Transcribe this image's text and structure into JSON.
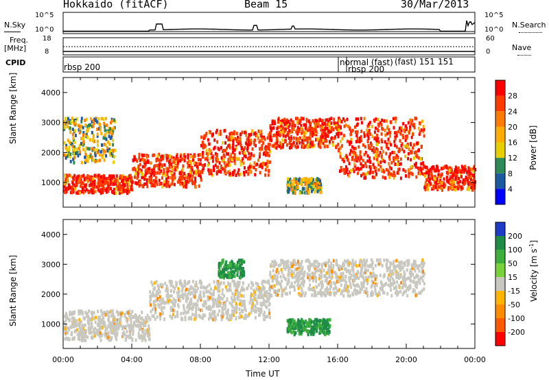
{
  "header": {
    "station": "Hokkaido (fitACF)",
    "beam": "Beam 15",
    "date": "30/Mar/2013"
  },
  "top_panels": {
    "nsky_label": "N.Sky",
    "nsky_ticks": [
      "10^5",
      "10^0"
    ],
    "nsearch_label": "N.Search",
    "nsearch_ticks": [
      "10^5",
      "10^0"
    ],
    "freq_label_1": "Freq.",
    "freq_label_2": "[MHz]",
    "freq_ticks": [
      "18",
      "8"
    ],
    "nave_label": "Nave",
    "nave_ticks": [
      "60",
      "0"
    ],
    "cpid_label": "CPID",
    "cpid_entries": [
      "rbsp 200",
      "normal (fast)",
      "rbsp 200",
      "(fast) 151",
      "151"
    ]
  },
  "chart_data": [
    {
      "type": "heatmap",
      "title": "",
      "ylabel": "Slant Range [km]",
      "xlim": [
        0,
        24
      ],
      "ylim": [
        180,
        4500
      ],
      "yticks": [
        "1000",
        "2000",
        "3000",
        "4000"
      ],
      "colorbar_label": "Power [dB]",
      "colorbar_ticks": [
        "28",
        "24",
        "20",
        "16",
        "12",
        "8",
        "4"
      ],
      "colorbar_colors": [
        "#ff0000",
        "#ff3b00",
        "#ff7a00",
        "#ffad00",
        "#e8d000",
        "#2e8b57",
        "#1e5aa0",
        "#0000ff"
      ],
      "regions": [
        {
          "t": [
            0,
            4
          ],
          "range": [
            700,
            1300
          ],
          "level": "high"
        },
        {
          "t": [
            4,
            8
          ],
          "range": [
            900,
            2000
          ],
          "level": "high"
        },
        {
          "t": [
            8,
            12
          ],
          "range": [
            1300,
            2800
          ],
          "level": "high"
        },
        {
          "t": [
            12,
            16
          ],
          "range": [
            2200,
            3200
          ],
          "level": "high"
        },
        {
          "t": [
            16,
            21
          ],
          "range": [
            1200,
            3200
          ],
          "level": "high"
        },
        {
          "t": [
            21,
            24
          ],
          "range": [
            800,
            1600
          ],
          "level": "high"
        },
        {
          "t": [
            0,
            3
          ],
          "range": [
            1700,
            3200
          ],
          "level": "medium"
        },
        {
          "t": [
            13,
            15
          ],
          "range": [
            700,
            1200
          ],
          "level": "medium"
        }
      ]
    },
    {
      "type": "heatmap",
      "title": "",
      "xlabel": "Time UT",
      "ylabel": "Slant Range [km]",
      "xlim": [
        0,
        24
      ],
      "ylim": [
        180,
        4500
      ],
      "xticks": [
        "00:00",
        "04:00",
        "08:00",
        "12:00",
        "16:00",
        "20:00",
        "00:00"
      ],
      "yticks": [
        "1000",
        "2000",
        "3000",
        "4000"
      ],
      "colorbar_label": "Velocity [m s",
      "colorbar_label_sup": "-1",
      "colorbar_label_end": "]",
      "colorbar_ticks": [
        "200",
        "100",
        "50",
        "15",
        "-15",
        "-50",
        "-100",
        "-200"
      ],
      "colorbar_colors": [
        "#1e3cc8",
        "#1e8c46",
        "#3caf3c",
        "#78d23c",
        "#c8c8c0",
        "#ffb400",
        "#ff8c00",
        "#ff5a00",
        "#ff0000"
      ],
      "regions": [
        {
          "t": [
            0,
            5
          ],
          "range": [
            500,
            1500
          ],
          "level": "low"
        },
        {
          "t": [
            5,
            12
          ],
          "range": [
            1200,
            2500
          ],
          "level": "low"
        },
        {
          "t": [
            12,
            21
          ],
          "range": [
            2000,
            3200
          ],
          "level": "low"
        },
        {
          "t": [
            13,
            15.5
          ],
          "range": [
            700,
            1200
          ],
          "level": "positive"
        },
        {
          "t": [
            9,
            10.5
          ],
          "range": [
            2600,
            3200
          ],
          "level": "positive"
        }
      ]
    }
  ]
}
